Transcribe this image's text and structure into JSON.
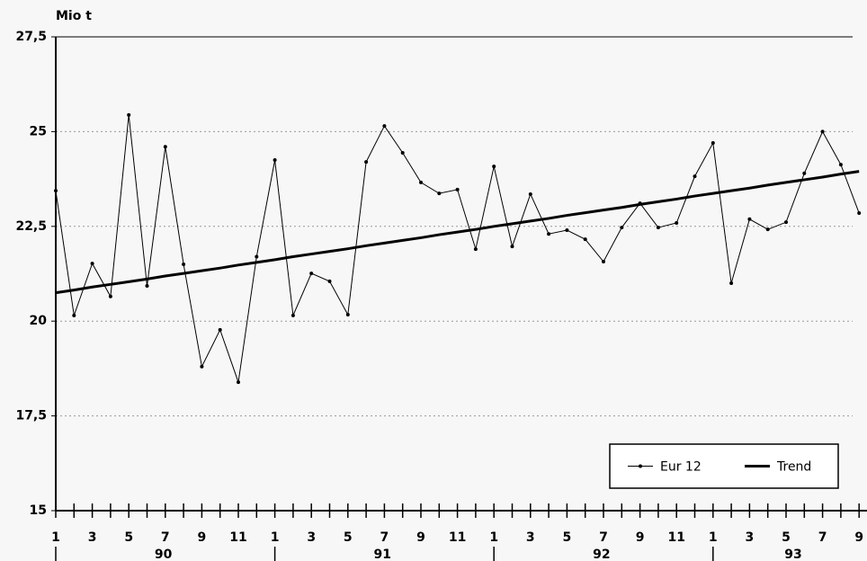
{
  "chart_data": {
    "type": "line",
    "y_label": "Mio t",
    "categories": [
      "1",
      null,
      "3",
      null,
      "5",
      null,
      "7",
      null,
      "9",
      null,
      "11",
      null,
      "1",
      null,
      "3",
      null,
      "5",
      null,
      "7",
      null,
      "9",
      null,
      "11",
      null,
      "1",
      null,
      "3",
      null,
      "5",
      null,
      "7",
      null,
      "9",
      null,
      "11",
      null,
      "1",
      null,
      "3",
      null,
      "5",
      null,
      "7",
      null,
      "9"
    ],
    "groups": [
      "90",
      "91",
      "92",
      "93"
    ],
    "series": [
      {
        "name": "Eur 12",
        "color": "#000000",
        "width": 1,
        "markers": true,
        "values": [
          23.44,
          20.15,
          21.52,
          20.65,
          25.44,
          20.93,
          24.6,
          21.5,
          18.8,
          19.77,
          18.39,
          21.7,
          24.25,
          20.15,
          21.26,
          21.05,
          20.17,
          24.2,
          25.15,
          24.44,
          23.66,
          23.37,
          23.47,
          21.9,
          24.08,
          21.97,
          23.35,
          22.3,
          22.4,
          22.16,
          21.57,
          22.47,
          23.11,
          22.47,
          22.59,
          23.82,
          24.7,
          21.0,
          22.69,
          22.42,
          22.61,
          23.9,
          25.0,
          24.13,
          22.85
        ]
      },
      {
        "name": "Trend",
        "color": "#000000",
        "width": 3,
        "markers": false,
        "values": [
          20.75,
          20.82,
          20.9,
          20.97,
          21.04,
          21.11,
          21.19,
          21.26,
          21.33,
          21.4,
          21.48,
          21.55,
          21.62,
          21.7,
          21.77,
          21.84,
          21.91,
          21.99,
          22.06,
          22.13,
          22.2,
          22.28,
          22.35,
          22.42,
          22.5,
          22.57,
          22.64,
          22.71,
          22.79,
          22.86,
          22.93,
          23.0,
          23.08,
          23.15,
          23.22,
          23.3,
          23.37,
          23.44,
          23.51,
          23.59,
          23.66,
          23.73,
          23.8,
          23.88,
          23.95
        ]
      }
    ],
    "ylim": [
      15,
      27.5
    ],
    "yticks": [
      15,
      {
        "value": 17.5,
        "label": "17,5"
      },
      20,
      {
        "value": 22.5,
        "label": "22,5"
      },
      25,
      {
        "value": 27.5,
        "label": "27,5"
      }
    ],
    "grid": true,
    "legend": "lower right"
  }
}
